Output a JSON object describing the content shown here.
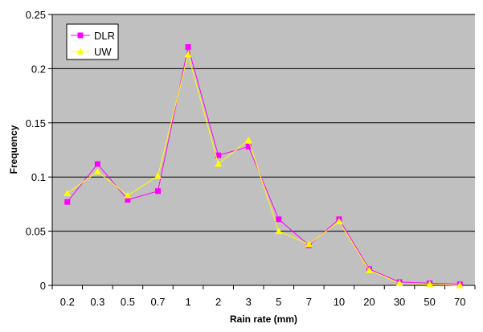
{
  "chart_data": {
    "type": "line",
    "title": "",
    "xlabel": "Rain rate (mm)",
    "ylabel": "Frequency",
    "ylim": [
      0,
      0.25
    ],
    "yticks": [
      0,
      0.05,
      0.1,
      0.15,
      0.2,
      0.25
    ],
    "ytick_labels": [
      "0",
      "0.05",
      "0.1",
      "0.15",
      "0.2",
      "0.25"
    ],
    "grid": true,
    "plot_background": "#c0c0c0",
    "legend_position": "top-left",
    "categories": [
      "0.2",
      "0.3",
      "0.5",
      "0.7",
      "1",
      "2",
      "3",
      "5",
      "7",
      "10",
      "20",
      "30",
      "50",
      "70"
    ],
    "series": [
      {
        "name": "DLR",
        "color": "#ff00ff",
        "marker": "square",
        "values": [
          0.077,
          0.112,
          0.079,
          0.087,
          0.22,
          0.12,
          0.128,
          0.061,
          0.037,
          0.061,
          0.015,
          0.003,
          0.002,
          0.001
        ]
      },
      {
        "name": "UW",
        "color": "#ffff00",
        "marker": "triangle",
        "values": [
          0.085,
          0.105,
          0.083,
          0.101,
          0.213,
          0.112,
          0.134,
          0.05,
          0.038,
          0.059,
          0.014,
          0.002,
          0.001,
          0.0
        ]
      }
    ]
  }
}
